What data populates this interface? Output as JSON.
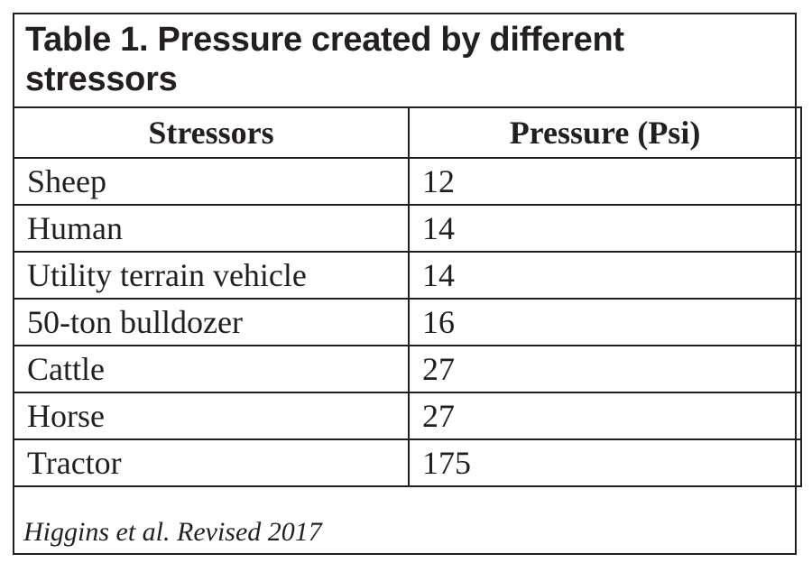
{
  "table": {
    "title": "Table 1. Pressure created by different stressors",
    "headers": [
      "Stressors",
      "Pressure (Psi)"
    ],
    "rows": [
      {
        "stressor": "Sheep",
        "pressure": "12"
      },
      {
        "stressor": "Human",
        "pressure": "14"
      },
      {
        "stressor": "Utility terrain vehicle",
        "pressure": "14"
      },
      {
        "stressor": "50-ton bulldozer",
        "pressure": "16"
      },
      {
        "stressor": "Cattle",
        "pressure": "27"
      },
      {
        "stressor": "Horse",
        "pressure": "27"
      },
      {
        "stressor": "Tractor",
        "pressure": "175"
      }
    ],
    "source": "Higgins et al. Revised 2017"
  }
}
